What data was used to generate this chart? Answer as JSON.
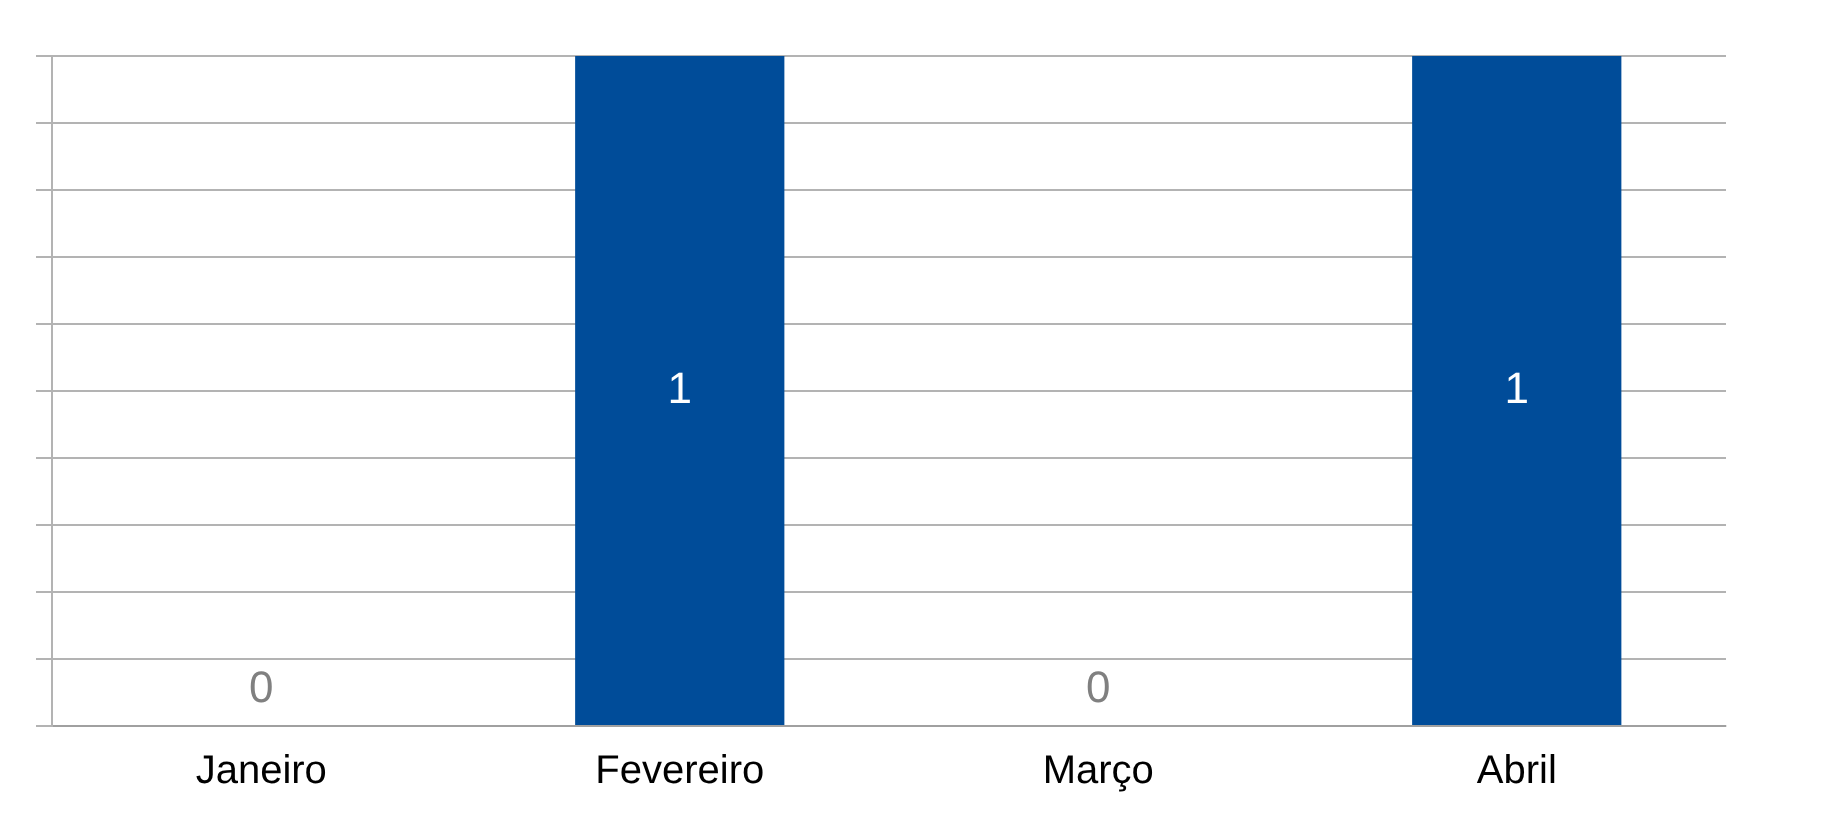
{
  "chart_data": {
    "type": "bar",
    "categories": [
      "Janeiro",
      "Fevereiro",
      "Março",
      "Abril"
    ],
    "values": [
      0,
      1,
      0,
      1
    ],
    "color": "#004c99",
    "data_labels": true,
    "grid": "y",
    "legend": false,
    "tick_labels": "x"
  }
}
